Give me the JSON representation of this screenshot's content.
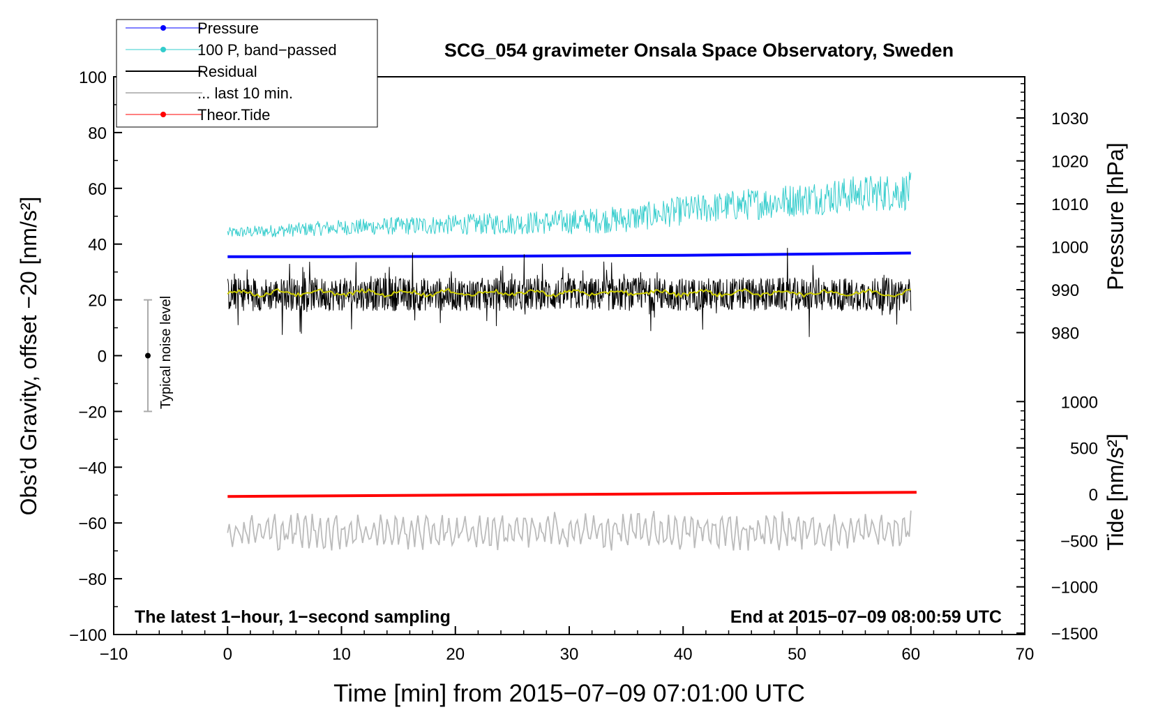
{
  "chart_data": {
    "type": "line",
    "title": "SCG_054 gravimeter Onsala Space Observatory, Sweden",
    "xlabel": "Time [min] from 2015−07−09 07:01:00 UTC",
    "ylabel_left": "Obs’d Gravity, offset −20 [nm/s²]",
    "ylabel_right_pressure": "Pressure [hPa]",
    "ylabel_right_tide": "Tide [nm/s²]",
    "annotation_left": "The latest 1−hour, 1−second sampling",
    "annotation_right": "End at 2015−07−09 08:00:59 UTC",
    "noise_label": "Typical noise level",
    "xlim": [
      -10,
      70
    ],
    "ylim_left": [
      -100,
      100
    ],
    "pressure_ticks": [
      980,
      990,
      1000,
      1010,
      1020,
      1030
    ],
    "tide_ticks": [
      -1500,
      -1000,
      -500,
      0,
      500,
      1000
    ],
    "x_ticks": [
      -10,
      0,
      10,
      20,
      30,
      40,
      50,
      60,
      70
    ],
    "x_tick_labels": [
      "−10",
      "0",
      "10",
      "20",
      "30",
      "40",
      "50",
      "60",
      "70"
    ],
    "y_ticks": [
      -100,
      -80,
      -60,
      -40,
      -20,
      0,
      20,
      40,
      60,
      80,
      100
    ],
    "y_tick_labels": [
      "−100",
      "−80",
      "−60",
      "−40",
      "−20",
      "0",
      "20",
      "40",
      "60",
      "80",
      "100"
    ],
    "pressure_tick_labels": [
      "980",
      "990",
      "1000",
      "1010",
      "1020",
      "1030"
    ],
    "tide_tick_labels": [
      "−1500",
      "−1000",
      "−500",
      "0",
      "500",
      "1000"
    ],
    "legend_placement": "top-left",
    "noise_bar": {
      "x": -7,
      "ymin": -20,
      "ymax": 20,
      "y": 0
    },
    "series": [
      {
        "name": "Pressure",
        "color": "#0000ff",
        "x": [
          0,
          10,
          20,
          30,
          40,
          50,
          60
        ],
        "y": [
          35.5,
          35.5,
          35.6,
          35.8,
          36.0,
          36.4,
          36.8
        ]
      },
      {
        "name": "100 P, band−passed",
        "color": "#33cccc",
        "x": [
          0,
          5,
          10,
          15,
          20,
          25,
          30,
          35,
          40,
          45,
          50,
          55,
          60
        ],
        "y": [
          44,
          45,
          46,
          46.5,
          47,
          47.5,
          48,
          49,
          52,
          54,
          56,
          58,
          59
        ]
      },
      {
        "name": "Residual",
        "color": "#000000",
        "x": [
          0,
          10,
          20,
          30,
          40,
          50,
          60
        ],
        "y": [
          22,
          22,
          22,
          22,
          22,
          22,
          22
        ]
      },
      {
        "name": "... last 10 min.",
        "color": "#bbbbbb",
        "x": [
          0,
          10,
          20,
          30,
          40,
          50,
          60
        ],
        "y": [
          -63,
          -63,
          -63,
          -63,
          -63,
          -63,
          -63
        ]
      },
      {
        "name": "Theor.Tide",
        "color": "#ff0000",
        "x": [
          0,
          60.5
        ],
        "y": [
          -50.5,
          -49
        ]
      }
    ],
    "smoothed_residual_color": "#cccc00"
  }
}
